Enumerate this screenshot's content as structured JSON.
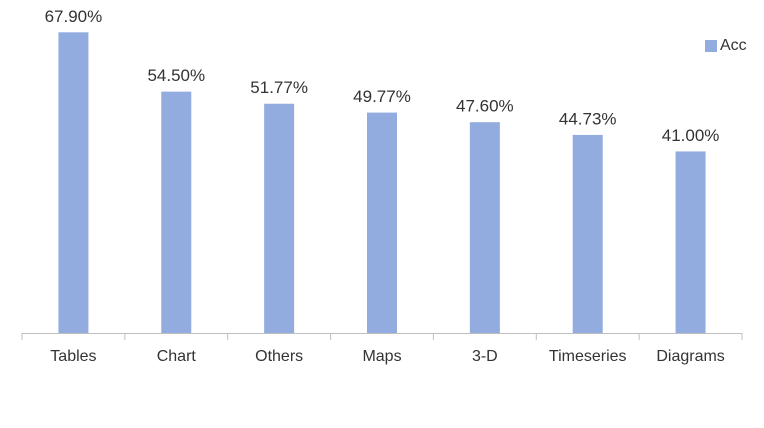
{
  "chart_data": {
    "type": "bar",
    "categories": [
      "Tables",
      "Chart",
      "Others",
      "Maps",
      "3-D",
      "Timeseries",
      "Diagrams"
    ],
    "series": [
      {
        "name": "Acc",
        "color": "#92acdf",
        "values": [
          67.9,
          54.5,
          51.77,
          49.77,
          47.6,
          44.73,
          41.0
        ],
        "value_labels": [
          "67.90%",
          "54.50%",
          "51.77%",
          "49.77%",
          "47.60%",
          "44.73%",
          "41.00%"
        ]
      }
    ],
    "ylim": [
      0,
      70
    ],
    "legend": "top-right"
  }
}
